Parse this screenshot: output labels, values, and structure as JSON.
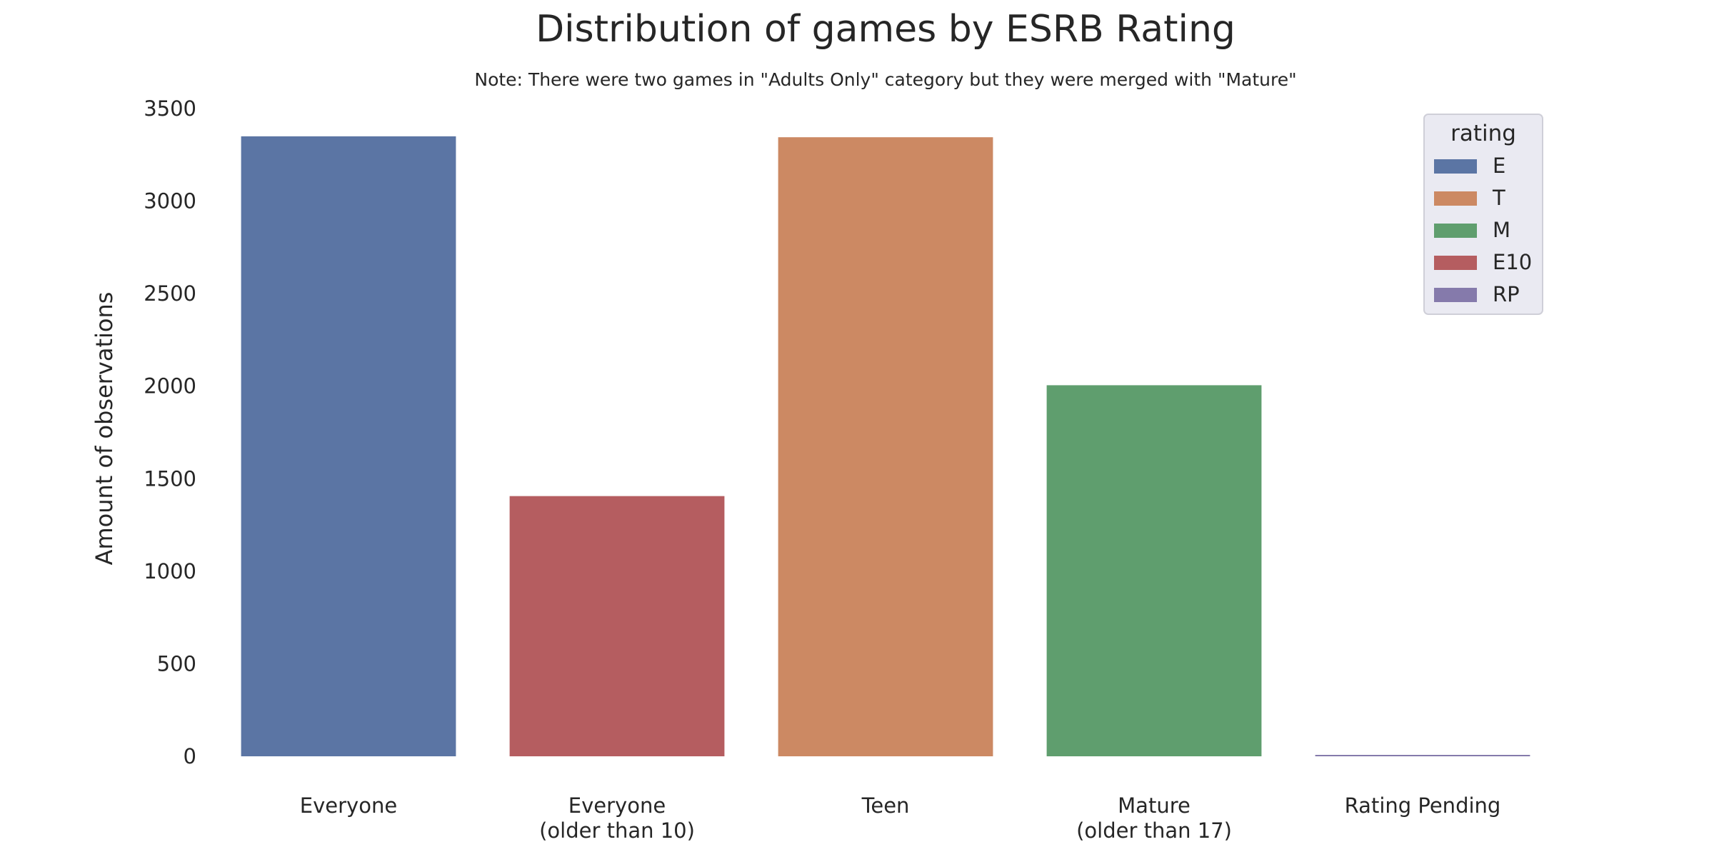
{
  "chart_data": {
    "type": "bar",
    "title": "Distribution of games by ESRB Rating",
    "subtitle": "Note: There were two games in \"Adults Only\" category but they were merged with \"Mature\"",
    "xlabel": "",
    "ylabel": "Amount of observations",
    "ylim": [
      0,
      3500
    ],
    "yticks": [
      0,
      500,
      1000,
      1500,
      2000,
      2500,
      3000,
      3500
    ],
    "grid": false,
    "categories": [
      [
        "Everyone"
      ],
      [
        "Everyone",
        "(older than 10)"
      ],
      [
        "Teen"
      ],
      [
        "Mature",
        "(older than 17)"
      ],
      [
        "Rating Pending"
      ]
    ],
    "bars": [
      {
        "rating": "E",
        "value": 3350,
        "color": "#5b75a4"
      },
      {
        "rating": "E10",
        "value": 1406,
        "color": "#b55d60"
      },
      {
        "rating": "T",
        "value": 3345,
        "color": "#cc8963"
      },
      {
        "rating": "M",
        "value": 2005,
        "color": "#5f9e6e"
      },
      {
        "rating": "RP",
        "value": 7,
        "color": "#857aab"
      }
    ],
    "legend": {
      "title": "rating",
      "position": "top-right",
      "entries": [
        {
          "label": "E",
          "color": "#5b75a4"
        },
        {
          "label": "T",
          "color": "#cc8963"
        },
        {
          "label": "M",
          "color": "#5f9e6e"
        },
        {
          "label": "E10",
          "color": "#b55d60"
        },
        {
          "label": "RP",
          "color": "#857aab"
        }
      ]
    }
  }
}
